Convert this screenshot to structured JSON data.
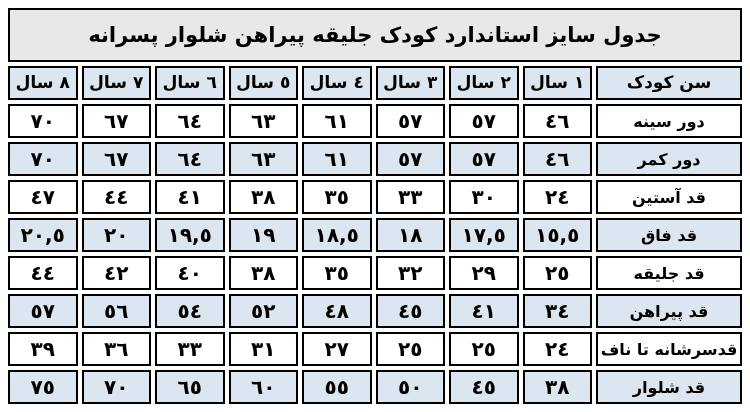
{
  "colors": {
    "title_background": "#e9e8e8",
    "row_highlight": "#dce6f1",
    "row_plain": "#ffffff",
    "border": "#000000",
    "text": "#000000"
  },
  "chart_data": {
    "type": "table",
    "direction": "rtl",
    "title": "جدول سایز استاندارد کودک جلیقه پیراهن شلوار پسرانه",
    "columns": [
      "سن کودک",
      "١ سال",
      "٢ سال",
      "٣ سال",
      "٤ سال",
      "٥ سال",
      "٦ سال",
      "٧ سال",
      "٨ سال"
    ],
    "rows": [
      {
        "label": "دور سینه",
        "cells": [
          "٤٦",
          "٥٧",
          "٥٧",
          "٦١",
          "٦٣",
          "٦٤",
          "٦٧",
          "٧٠"
        ],
        "values": [
          46,
          57,
          57,
          61,
          63,
          64,
          67,
          70
        ]
      },
      {
        "label": "دور کمر",
        "cells": [
          "٤٦",
          "٥٧",
          "٥٧",
          "٦١",
          "٦٣",
          "٦٤",
          "٦٧",
          "٧٠"
        ],
        "values": [
          46,
          57,
          57,
          61,
          63,
          64,
          67,
          70
        ]
      },
      {
        "label": "قد آستین",
        "cells": [
          "٢٤",
          "٣٠",
          "٣٣",
          "٣٥",
          "٣٨",
          "٤١",
          "٤٤",
          "٤٧"
        ],
        "values": [
          24,
          30,
          33,
          35,
          38,
          41,
          44,
          47
        ]
      },
      {
        "label": "قد فاق",
        "cells": [
          "١٥,٥",
          "١٧,٥",
          "١٨",
          "١٨,٥",
          "١٩",
          "١٩,٥",
          "٢٠",
          "٢٠,٥"
        ],
        "values": [
          15.5,
          17.5,
          18,
          18.5,
          19,
          19.5,
          20,
          20.5
        ]
      },
      {
        "label": "قد جلیقه",
        "cells": [
          "٢٥",
          "٢٩",
          "٣٢",
          "٣٥",
          "٣٨",
          "٤٠",
          "٤٢",
          "٤٤"
        ],
        "values": [
          25,
          29,
          32,
          35,
          38,
          40,
          42,
          44
        ]
      },
      {
        "label": "قد پیراهن",
        "cells": [
          "٣٤",
          "٤١",
          "٤٥",
          "٤٨",
          "٥٢",
          "٥٤",
          "٥٦",
          "٥٧"
        ],
        "values": [
          34,
          41,
          45,
          48,
          52,
          54,
          56,
          57
        ]
      },
      {
        "label": "قدسرشانه تا ناف",
        "cells": [
          "٢٤",
          "٢٥",
          "٢٥",
          "٢٧",
          "٣١",
          "٣٣",
          "٣٦",
          "٣٩"
        ],
        "values": [
          24,
          25,
          25,
          27,
          31,
          33,
          36,
          39
        ]
      },
      {
        "label": "قد شلوار",
        "cells": [
          "٣٨",
          "٤٥",
          "٥٠",
          "٥٥",
          "٦٠",
          "٦٥",
          "٧٠",
          "٧٥"
        ],
        "values": [
          38,
          45,
          50,
          55,
          60,
          65,
          70,
          75
        ]
      }
    ]
  }
}
